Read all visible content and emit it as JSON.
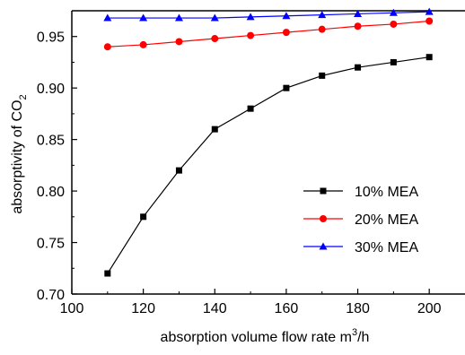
{
  "chart_data": {
    "type": "line",
    "xlabel": "absorption volume flow rate m",
    "xlabel_sup": "3",
    "xlabel_suffix": "/h",
    "ylabel": "absorptivity of CO",
    "ylabel_sub": "2",
    "xlim": [
      100,
      210
    ],
    "ylim": [
      0.7,
      0.975
    ],
    "x_ticks": [
      100,
      120,
      140,
      160,
      180,
      200
    ],
    "x_tick_labels": [
      "100",
      "120",
      "140",
      "160",
      "180",
      "200"
    ],
    "y_ticks": [
      0.7,
      0.75,
      0.8,
      0.85,
      0.9,
      0.95
    ],
    "y_tick_labels": [
      "0.70",
      "0.75",
      "0.80",
      "0.85",
      "0.90",
      "0.95"
    ],
    "grid": false,
    "legend_position": "center-right",
    "x": [
      110,
      120,
      130,
      140,
      150,
      160,
      170,
      180,
      190,
      200
    ],
    "series": [
      {
        "name": "10% MEA",
        "color": "#000000",
        "marker": "square",
        "values": [
          0.72,
          0.775,
          0.82,
          0.86,
          0.88,
          0.9,
          0.912,
          0.92,
          0.925,
          0.93
        ]
      },
      {
        "name": "20% MEA",
        "color": "#ff0000",
        "marker": "circle",
        "values": [
          0.94,
          0.942,
          0.945,
          0.948,
          0.951,
          0.954,
          0.957,
          0.96,
          0.962,
          0.965
        ]
      },
      {
        "name": "30% MEA",
        "color": "#0000ff",
        "marker": "triangle",
        "values": [
          0.968,
          0.968,
          0.968,
          0.968,
          0.969,
          0.97,
          0.971,
          0.972,
          0.973,
          0.974
        ]
      }
    ]
  }
}
